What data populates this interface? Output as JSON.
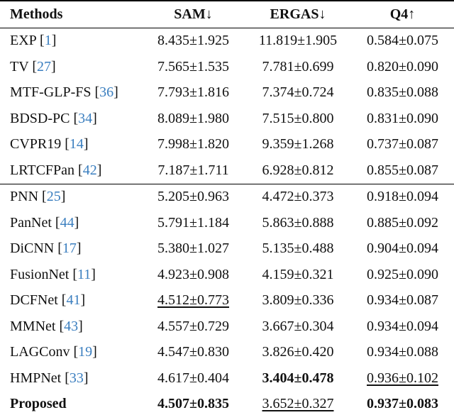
{
  "table": {
    "header": [
      "Methods",
      "SAM↓",
      "ERGAS↓",
      "Q4↑"
    ],
    "groups": [
      [
        {
          "method": "EXP",
          "ref": "[1]",
          "cells": [
            {
              "text": "8.435±1.925"
            },
            {
              "text": "11.819±1.905"
            },
            {
              "text": "0.584±0.075"
            }
          ]
        },
        {
          "method": "TV",
          "ref": "[27]",
          "cells": [
            {
              "text": "7.565±1.535"
            },
            {
              "text": "7.781±0.699"
            },
            {
              "text": "0.820±0.090"
            }
          ]
        },
        {
          "method": "MTF-GLP-FS",
          "ref": "[36]",
          "cells": [
            {
              "text": "7.793±1.816"
            },
            {
              "text": "7.374±0.724"
            },
            {
              "text": "0.835±0.088"
            }
          ]
        },
        {
          "method": "BDSD-PC",
          "ref": "[34]",
          "cells": [
            {
              "text": "8.089±1.980"
            },
            {
              "text": "7.515±0.800"
            },
            {
              "text": "0.831±0.090"
            }
          ]
        },
        {
          "method": "CVPR19",
          "ref": "[14]",
          "cells": [
            {
              "text": "7.998±1.820"
            },
            {
              "text": "9.359±1.268"
            },
            {
              "text": "0.737±0.087"
            }
          ]
        },
        {
          "method": "LRTCFPan",
          "ref": "[42]",
          "cells": [
            {
              "text": "7.187±1.711"
            },
            {
              "text": "6.928±0.812"
            },
            {
              "text": "0.855±0.087"
            }
          ]
        }
      ],
      [
        {
          "method": "PNN",
          "ref": "[25]",
          "cells": [
            {
              "text": "5.205±0.963"
            },
            {
              "text": "4.472±0.373"
            },
            {
              "text": "0.918±0.094"
            }
          ]
        },
        {
          "method": "PanNet",
          "ref": "[44]",
          "cells": [
            {
              "text": "5.791±1.184"
            },
            {
              "text": "5.863±0.888"
            },
            {
              "text": "0.885±0.092"
            }
          ]
        },
        {
          "method": "DiCNN",
          "ref": "[17]",
          "cells": [
            {
              "text": "5.380±1.027"
            },
            {
              "text": "5.135±0.488"
            },
            {
              "text": "0.904±0.094"
            }
          ]
        },
        {
          "method": "FusionNet",
          "ref": "[11]",
          "cells": [
            {
              "text": "4.923±0.908"
            },
            {
              "text": "4.159±0.321"
            },
            {
              "text": "0.925±0.090"
            }
          ]
        },
        {
          "method": "DCFNet",
          "ref": "[41]",
          "cells": [
            {
              "text": "4.512±0.773",
              "emphasis": "underline"
            },
            {
              "text": "3.809±0.336"
            },
            {
              "text": "0.934±0.087"
            }
          ]
        },
        {
          "method": "MMNet",
          "ref": "[43]",
          "cells": [
            {
              "text": "4.557±0.729"
            },
            {
              "text": "3.667±0.304"
            },
            {
              "text": "0.934±0.094"
            }
          ]
        },
        {
          "method": "LAGConv",
          "ref": "[19]",
          "cells": [
            {
              "text": "4.547±0.830"
            },
            {
              "text": "3.826±0.420"
            },
            {
              "text": "0.934±0.088"
            }
          ]
        },
        {
          "method": "HMPNet",
          "ref": "[33]",
          "cells": [
            {
              "text": "4.617±0.404"
            },
            {
              "text": "3.404±0.478",
              "emphasis": "bold"
            },
            {
              "text": "0.936±0.102",
              "emphasis": "underline"
            }
          ]
        },
        {
          "method": "Proposed",
          "emphasis": "bold",
          "cells": [
            {
              "text": "4.507±0.835",
              "emphasis": "bold"
            },
            {
              "text": "3.652±0.327",
              "emphasis": "underline"
            },
            {
              "text": "0.937±0.083",
              "emphasis": "bold"
            }
          ]
        }
      ]
    ]
  }
}
